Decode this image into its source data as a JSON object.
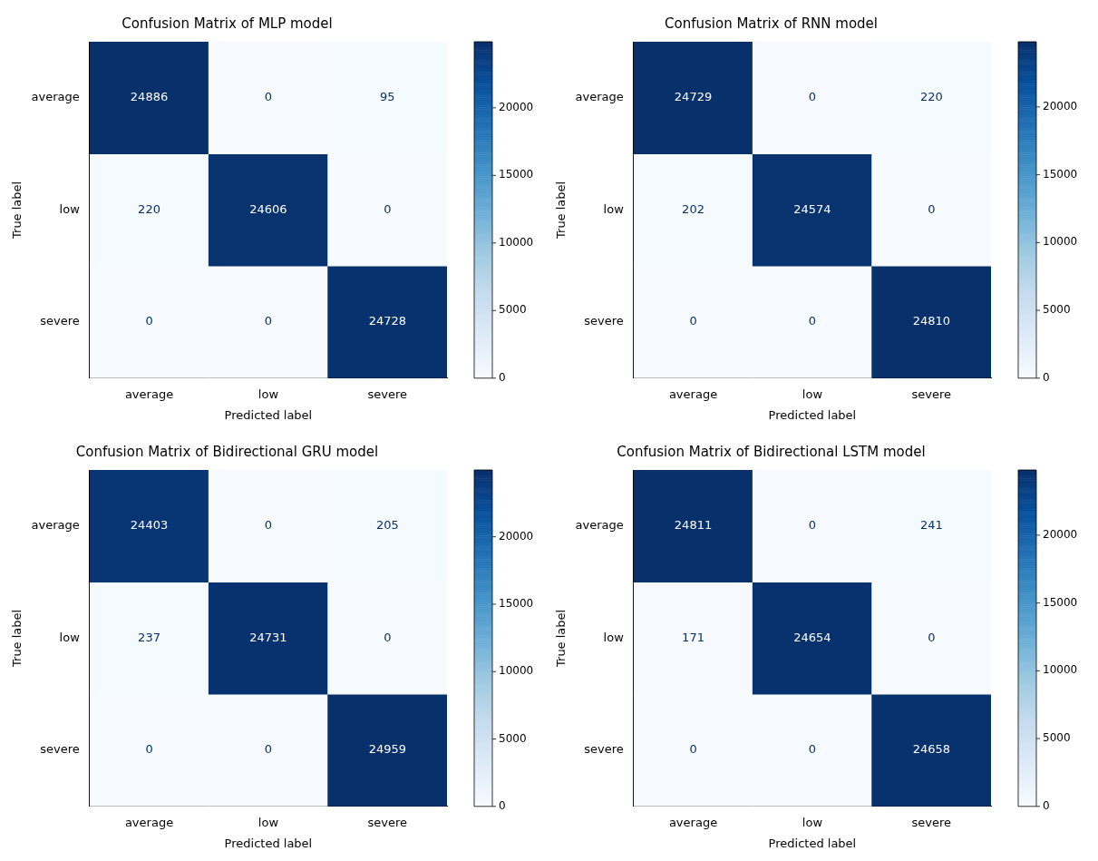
{
  "chart_data": [
    {
      "type": "heatmap",
      "title": "Confusion Matrix of MLP model",
      "xlabel": "Predicted label",
      "ylabel": "True label",
      "categories": [
        "average",
        "low",
        "severe"
      ],
      "y_categories": [
        "average",
        "low",
        "severe"
      ],
      "cells": [
        [
          24886,
          0,
          95
        ],
        [
          220,
          24606,
          0
        ],
        [
          0,
          0,
          24728
        ]
      ],
      "clim": [
        0,
        24886
      ],
      "cticks": [
        0,
        5000,
        10000,
        15000,
        20000
      ],
      "data_labels": true
    },
    {
      "type": "heatmap",
      "title": "Confusion Matrix of RNN model",
      "xlabel": "Predicted label",
      "ylabel": "True label",
      "categories": [
        "average",
        "low",
        "severe"
      ],
      "y_categories": [
        "average",
        "low",
        "severe"
      ],
      "cells": [
        [
          24729,
          0,
          220
        ],
        [
          202,
          24574,
          0
        ],
        [
          0,
          0,
          24810
        ]
      ],
      "clim": [
        0,
        24810
      ],
      "cticks": [
        0,
        5000,
        10000,
        15000,
        20000
      ],
      "data_labels": true
    },
    {
      "type": "heatmap",
      "title": "Confusion Matrix of Bidirectional GRU model",
      "xlabel": "Predicted label",
      "ylabel": "True label",
      "categories": [
        "average",
        "low",
        "severe"
      ],
      "y_categories": [
        "average",
        "low",
        "severe"
      ],
      "cells": [
        [
          24403,
          0,
          205
        ],
        [
          237,
          24731,
          0
        ],
        [
          0,
          0,
          24959
        ]
      ],
      "clim": [
        0,
        24959
      ],
      "cticks": [
        0,
        5000,
        10000,
        15000,
        20000
      ],
      "data_labels": true
    },
    {
      "type": "heatmap",
      "title": "Confusion Matrix of Bidirectional LSTM model",
      "xlabel": "Predicted label",
      "ylabel": "True label",
      "categories": [
        "average",
        "low",
        "severe"
      ],
      "y_categories": [
        "average",
        "low",
        "severe"
      ],
      "cells": [
        [
          24811,
          0,
          241
        ],
        [
          171,
          24654,
          0
        ],
        [
          0,
          0,
          24658
        ]
      ],
      "clim": [
        0,
        24811
      ],
      "cticks": [
        0,
        5000,
        10000,
        15000,
        20000
      ],
      "data_labels": true
    }
  ]
}
